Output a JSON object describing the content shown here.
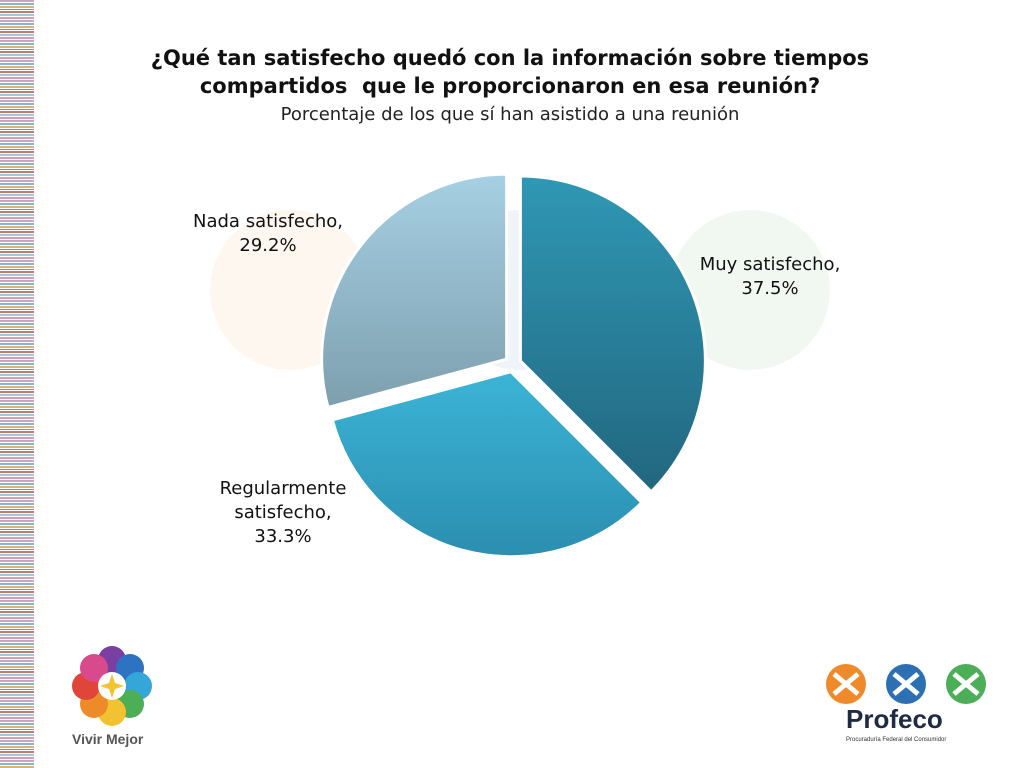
{
  "title_lines": [
    "¿Qué tan satisfecho quedó con la información sobre tiempos",
    "compartidos  que le proporcionaron en esa reunión?"
  ],
  "subtitle": "Porcentaje de los que sí han asistido a una reunión",
  "chart_data": {
    "type": "pie",
    "title": "¿Qué tan satisfecho quedó con la información sobre tiempos compartidos  que le proporcionaron en esa reunión?",
    "subtitle": "Porcentaje de los que sí han asistido a una reunión",
    "slices": [
      {
        "label_lines": [
          "Muy satisfecho,",
          "37.5%"
        ],
        "name": "Muy satisfecho",
        "value": 37.5,
        "color_light": "#2f98b4",
        "color_dark": "#22667f"
      },
      {
        "label_lines": [
          "Regularmente",
          "satisfecho,",
          "33.3%"
        ],
        "name": "Regularmente satisfecho",
        "value": 33.3,
        "color_light": "#3cb4d6",
        "color_dark": "#2b8eb0"
      },
      {
        "label_lines": [
          "Nada satisfecho,",
          "29.2%"
        ],
        "name": "Nada satisfecho",
        "value": 29.2,
        "color_light": "#a6d0e3",
        "color_dark": "#7d9fae"
      }
    ],
    "start_angle_deg": 0,
    "direction": "clockwise",
    "legend": "none"
  },
  "logos": {
    "vivir_mejor": "Vivir Mejor",
    "profeco": "Profeco",
    "profeco_sub": "Procuraduría Federal del Consumidor"
  }
}
